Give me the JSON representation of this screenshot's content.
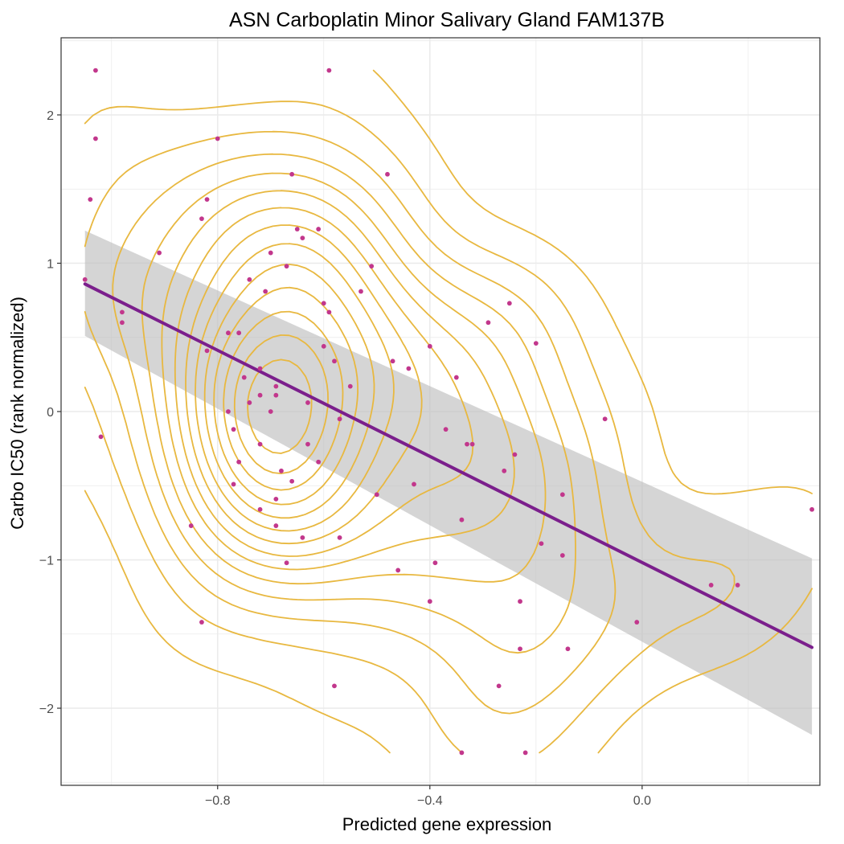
{
  "chart_data": {
    "type": "scatter",
    "title": "ASN Carboplatin Minor Salivary Gland FAM137B",
    "xlabel": "Predicted gene expression",
    "ylabel": "Carbo IC50 (rank normalized)",
    "xlim": [
      -1.095,
      0.335
    ],
    "ylim": [
      -2.52,
      2.52
    ],
    "x_ticks": [
      -0.8,
      -0.4,
      0.0
    ],
    "x_tick_labels": [
      "−0.8",
      "−0.4",
      "0.0"
    ],
    "y_ticks": [
      -2,
      -1,
      0,
      1,
      2
    ],
    "y_tick_labels": [
      "−2",
      "−1",
      "0",
      "1",
      "2"
    ],
    "grid": true,
    "colors": {
      "points": "#c2378c",
      "regression_line": "#7b1f8c",
      "confidence_band": "#bfbfbf",
      "contours": "#e8b840",
      "grid": "#ebebeb",
      "panel_border": "#333333"
    },
    "points": [
      [
        -1.03,
        2.3
      ],
      [
        -0.59,
        2.3
      ],
      [
        -1.03,
        1.84
      ],
      [
        -0.8,
        1.84
      ],
      [
        -0.66,
        1.6
      ],
      [
        -0.48,
        1.6
      ],
      [
        -1.04,
        1.43
      ],
      [
        -0.82,
        1.43
      ],
      [
        -0.83,
        1.3
      ],
      [
        -0.65,
        1.23
      ],
      [
        -0.61,
        1.23
      ],
      [
        -0.64,
        1.17
      ],
      [
        -0.91,
        1.07
      ],
      [
        -0.7,
        1.07
      ],
      [
        -0.67,
        0.98
      ],
      [
        -0.51,
        0.98
      ],
      [
        -1.05,
        0.89
      ],
      [
        -0.74,
        0.89
      ],
      [
        -0.71,
        0.81
      ],
      [
        -0.53,
        0.81
      ],
      [
        -0.25,
        0.73
      ],
      [
        -0.6,
        0.73
      ],
      [
        -0.98,
        0.67
      ],
      [
        -0.59,
        0.67
      ],
      [
        -0.98,
        0.6
      ],
      [
        -0.29,
        0.6
      ],
      [
        -0.78,
        0.53
      ],
      [
        -0.76,
        0.53
      ],
      [
        -0.82,
        0.41
      ],
      [
        -0.6,
        0.44
      ],
      [
        -0.4,
        0.44
      ],
      [
        -0.2,
        0.46
      ],
      [
        -0.58,
        0.34
      ],
      [
        -0.47,
        0.34
      ],
      [
        -0.72,
        0.29
      ],
      [
        -0.44,
        0.29
      ],
      [
        -0.75,
        0.23
      ],
      [
        -0.35,
        0.23
      ],
      [
        -0.69,
        0.17
      ],
      [
        -0.55,
        0.17
      ],
      [
        -0.72,
        0.11
      ],
      [
        -0.69,
        0.11
      ],
      [
        -0.74,
        0.06
      ],
      [
        -0.63,
        0.06
      ],
      [
        -0.78,
        0.0
      ],
      [
        -0.7,
        0.0
      ],
      [
        -0.57,
        -0.05
      ],
      [
        -0.07,
        -0.05
      ],
      [
        -0.37,
        -0.12
      ],
      [
        -0.77,
        -0.12
      ],
      [
        -1.02,
        -0.17
      ],
      [
        -0.72,
        -0.22
      ],
      [
        -0.63,
        -0.22
      ],
      [
        -0.33,
        -0.22
      ],
      [
        -0.32,
        -0.22
      ],
      [
        -0.24,
        -0.29
      ],
      [
        -0.76,
        -0.34
      ],
      [
        -0.61,
        -0.34
      ],
      [
        -0.68,
        -0.4
      ],
      [
        -0.26,
        -0.4
      ],
      [
        -0.66,
        -0.47
      ],
      [
        -0.77,
        -0.49
      ],
      [
        -0.43,
        -0.49
      ],
      [
        -0.5,
        -0.56
      ],
      [
        -0.15,
        -0.56
      ],
      [
        -0.69,
        -0.59
      ],
      [
        -0.72,
        -0.66
      ],
      [
        -0.34,
        -0.73
      ],
      [
        -0.85,
        -0.77
      ],
      [
        -0.69,
        -0.77
      ],
      [
        -0.64,
        -0.85
      ],
      [
        -0.57,
        -0.85
      ],
      [
        -0.19,
        -0.89
      ],
      [
        -0.15,
        -0.97
      ],
      [
        -0.67,
        -1.02
      ],
      [
        -0.39,
        -1.02
      ],
      [
        -0.46,
        -1.07
      ],
      [
        0.13,
        -1.17
      ],
      [
        0.18,
        -1.17
      ],
      [
        -0.4,
        -1.28
      ],
      [
        -0.23,
        -1.28
      ],
      [
        -0.83,
        -1.42
      ],
      [
        -0.01,
        -1.42
      ],
      [
        -0.23,
        -1.6
      ],
      [
        -0.14,
        -1.6
      ],
      [
        -0.58,
        -1.85
      ],
      [
        -0.27,
        -1.85
      ],
      [
        -0.34,
        -2.3
      ],
      [
        -0.22,
        -2.3
      ],
      [
        0.32,
        -0.66
      ]
    ],
    "regression": {
      "x": [
        -1.05,
        0.32
      ],
      "y": [
        0.86,
        -1.59
      ],
      "ci_lower": [
        0.51,
        -2.18
      ],
      "ci_upper": [
        1.22,
        -0.99
      ]
    }
  }
}
